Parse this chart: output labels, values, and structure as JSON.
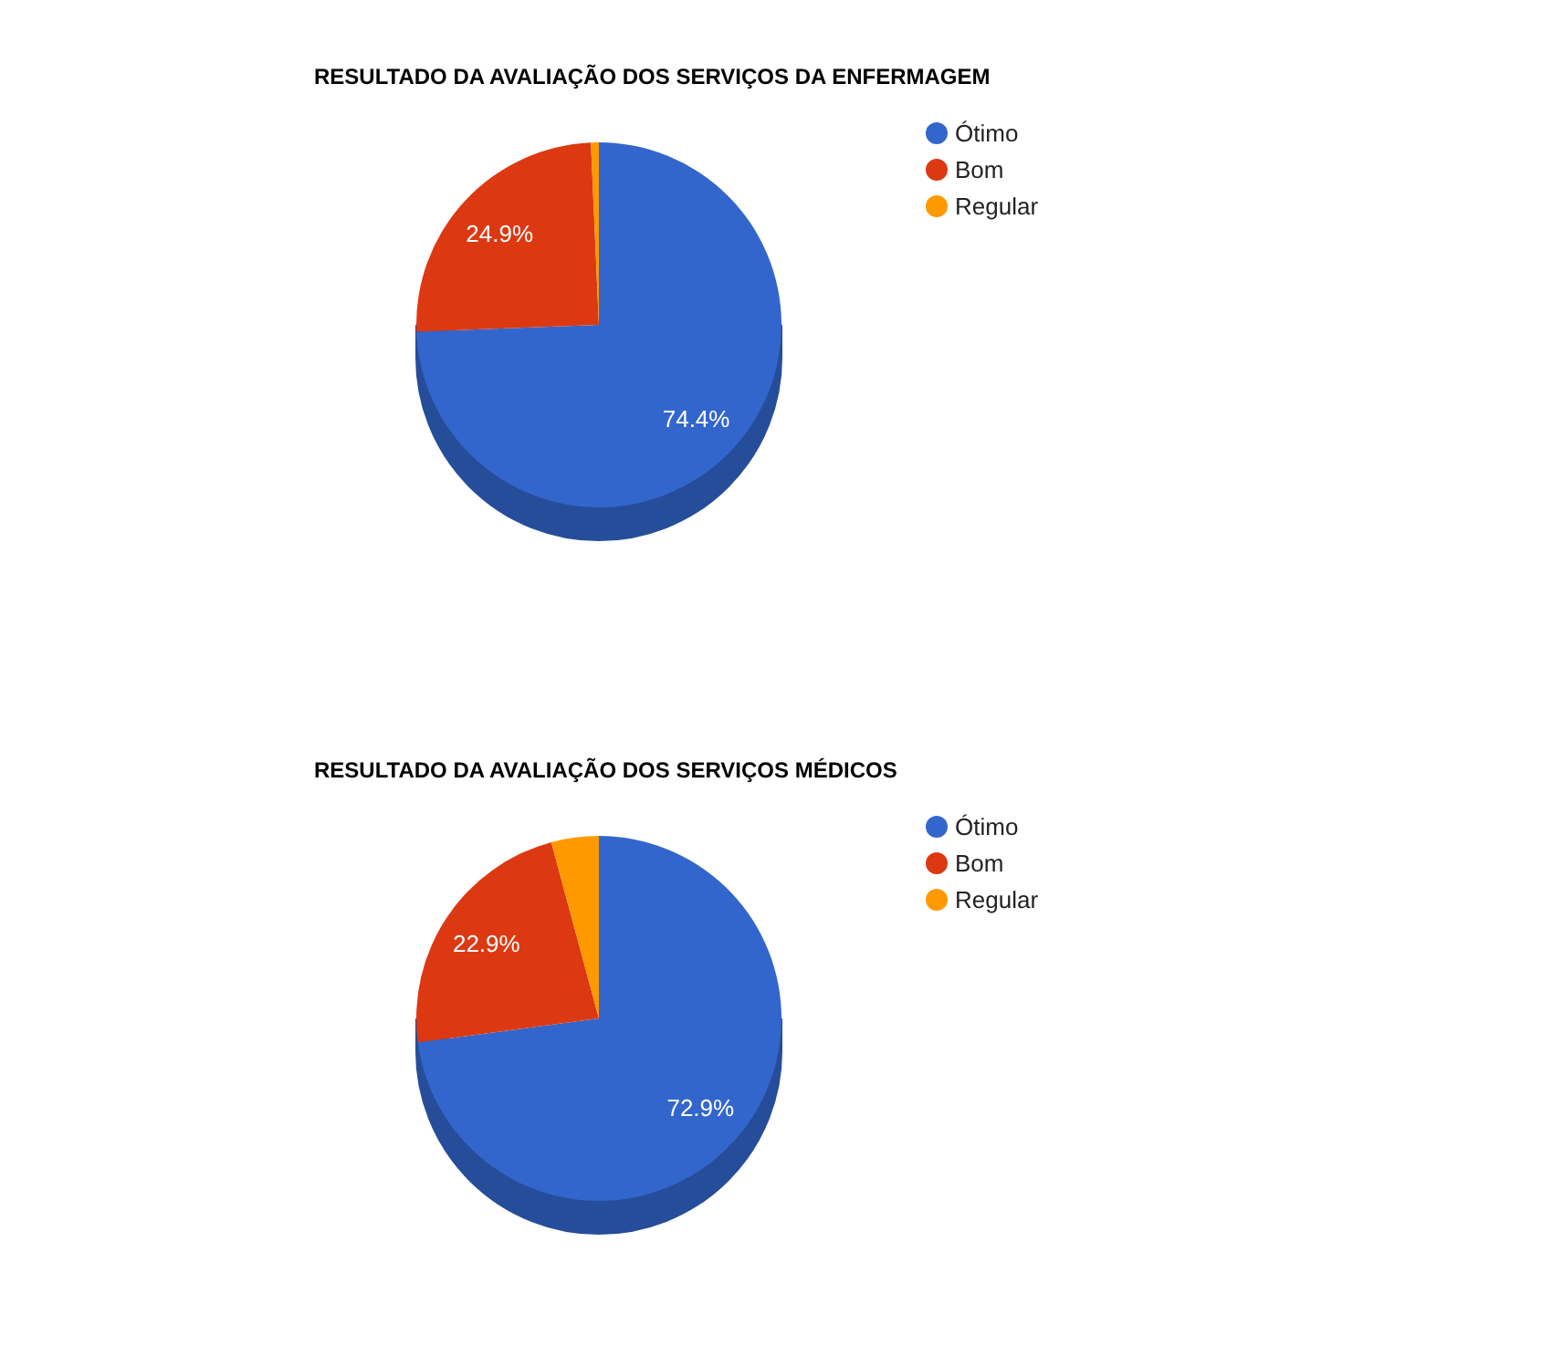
{
  "chart_data": [
    {
      "type": "pie",
      "title": "RESULTADO DA AVALIAÇÃO DOS SERVIÇOS DA ENFERMAGEM",
      "categories": [
        "Ótimo",
        "Bom",
        "Regular"
      ],
      "values": [
        74.4,
        24.9,
        0.7
      ],
      "colors": [
        "#3366cc",
        "#dc3912",
        "#ff9900"
      ],
      "value_labels": [
        "74.4%",
        "24.9%",
        null
      ],
      "legend": "right"
    },
    {
      "type": "pie",
      "title": "RESULTADO DA AVALIAÇÃO DOS SERVIÇOS MÉDICOS",
      "categories": [
        "Ótimo",
        "Bom",
        "Regular"
      ],
      "values": [
        72.9,
        22.9,
        4.2
      ],
      "colors": [
        "#3366cc",
        "#dc3912",
        "#ff9900"
      ],
      "value_labels": [
        "72.9%",
        "22.9%",
        null
      ],
      "legend": "right"
    }
  ]
}
